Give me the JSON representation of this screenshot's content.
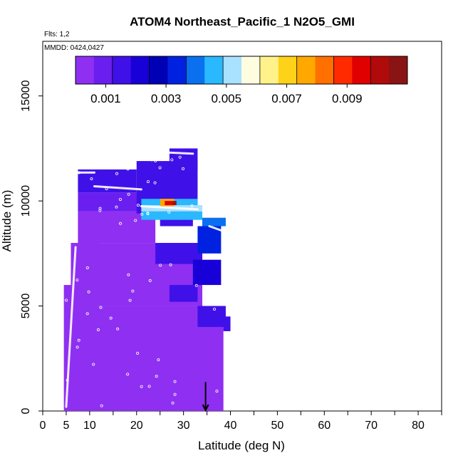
{
  "chart_data": {
    "type": "heatmap",
    "title": "ATOM4 Northeast_Pacific_1 N2O5_GMI",
    "flights_label": "Flts: 1,2",
    "date_label": "MMDD: 0424,0427",
    "xlabel": "Latitude (deg N)",
    "ylabel": "Altitude (m)",
    "xlim": [
      0,
      85
    ],
    "ylim": [
      0,
      17600
    ],
    "x_ticks": [
      0,
      5,
      10,
      20,
      30,
      40,
      50,
      60,
      70,
      80
    ],
    "y_ticks": [
      0,
      5000,
      10000,
      15000
    ],
    "grid": false,
    "colorbar": {
      "placement": "top-inside",
      "range": [
        0,
        0.011
      ],
      "tick_values": [
        0.001,
        0.003,
        0.005,
        0.007,
        0.009
      ],
      "tick_labels": [
        "0.001",
        "0.003",
        "0.005",
        "0.007",
        "0.009"
      ],
      "colors": [
        "#8f2ff2",
        "#6a1ff0",
        "#4010e8",
        "#1800d8",
        "#0000b4",
        "#0022e0",
        "#0a70f0",
        "#2ab8ff",
        "#a8e2ff",
        "#fefde0",
        "#fff28a",
        "#ffd21a",
        "#ffa800",
        "#ff7000",
        "#ff2a00",
        "#e00000",
        "#b00a0a",
        "#8a1414"
      ]
    },
    "background_value": 0.0002,
    "colored_cells": [
      {
        "lat": [
          4.5,
          11
        ],
        "alt": [
          0,
          6000
        ],
        "value": 0.0002
      },
      {
        "lat": [
          6,
          12
        ],
        "alt": [
          6000,
          8000
        ],
        "value": 0.0002
      },
      {
        "lat": [
          7,
          38.5
        ],
        "alt": [
          0,
          5000
        ],
        "value": 0.0002
      },
      {
        "lat": [
          6,
          34
        ],
        "alt": [
          5000,
          8000
        ],
        "value": 0.0002
      },
      {
        "lat": [
          7.5,
          24
        ],
        "alt": [
          8000,
          9500
        ],
        "value": 0.0005
      },
      {
        "lat": [
          24,
          34
        ],
        "alt": [
          7000,
          8000
        ],
        "value": 0.0013
      },
      {
        "lat": [
          27,
          33
        ],
        "alt": [
          5200,
          6000
        ],
        "value": 0.0015
      },
      {
        "lat": [
          32,
          38
        ],
        "alt": [
          6000,
          7200
        ],
        "value": 0.0023
      },
      {
        "lat": [
          33,
          39
        ],
        "alt": [
          4000,
          5000
        ],
        "value": 0.0016
      },
      {
        "lat": [
          38.5,
          40
        ],
        "alt": [
          3800,
          4500
        ],
        "value": 0.0014
      },
      {
        "lat": [
          7.5,
          25
        ],
        "alt": [
          9500,
          10400
        ],
        "value": 0.0012
      },
      {
        "lat": [
          7.5,
          20
        ],
        "alt": [
          10400,
          11500
        ],
        "value": 0.0014
      },
      {
        "lat": [
          20,
          33
        ],
        "alt": [
          9400,
          11900
        ],
        "value": 0.0014
      },
      {
        "lat": [
          27,
          33
        ],
        "alt": [
          11500,
          12500
        ],
        "value": 0.0015
      },
      {
        "lat": [
          25,
          32
        ],
        "alt": [
          8800,
          9400
        ],
        "value": 0.0018
      },
      {
        "lat": [
          33,
          38
        ],
        "alt": [
          7500,
          8800
        ],
        "value": 0.0034
      },
      {
        "lat": [
          34,
          39
        ],
        "alt": [
          8800,
          9200
        ],
        "value": 0.004
      },
      {
        "lat": [
          21,
          34
        ],
        "alt": [
          9100,
          9500
        ],
        "value": 0.0045
      },
      {
        "lat": [
          21,
          34
        ],
        "alt": [
          9500,
          9800
        ],
        "value": 0.005
      },
      {
        "lat": [
          21,
          33
        ],
        "alt": [
          9800,
          10100
        ],
        "value": 0.0047
      },
      {
        "lat": [
          25,
          28
        ],
        "alt": [
          9750,
          10100
        ],
        "value": 0.0074
      },
      {
        "lat": [
          26,
          27.5
        ],
        "alt": [
          9800,
          10000
        ],
        "value": 0.0096
      },
      {
        "lat": [
          27.5,
          28.5
        ],
        "alt": [
          9800,
          10000
        ],
        "value": 0.0102
      }
    ],
    "flight_tracks": [
      {
        "lat": [
          5,
          11
        ],
        "alt": [
          11350,
          11350
        ]
      },
      {
        "lat": [
          11,
          21
        ],
        "alt": [
          10700,
          10550
        ]
      },
      {
        "lat": [
          27,
          32
        ],
        "alt": [
          12300,
          12250
        ]
      },
      {
        "lat": [
          21,
          33
        ],
        "alt": [
          9750,
          9600
        ]
      },
      {
        "lat": [
          35.5,
          38
        ],
        "alt": [
          8800,
          8600
        ]
      },
      {
        "lat": [
          5,
          7
        ],
        "alt": [
          200,
          7800
        ]
      }
    ],
    "annotations": [
      {
        "type": "arrow",
        "lat": 34.7,
        "alt_from": 700,
        "alt_to": 0
      }
    ]
  }
}
